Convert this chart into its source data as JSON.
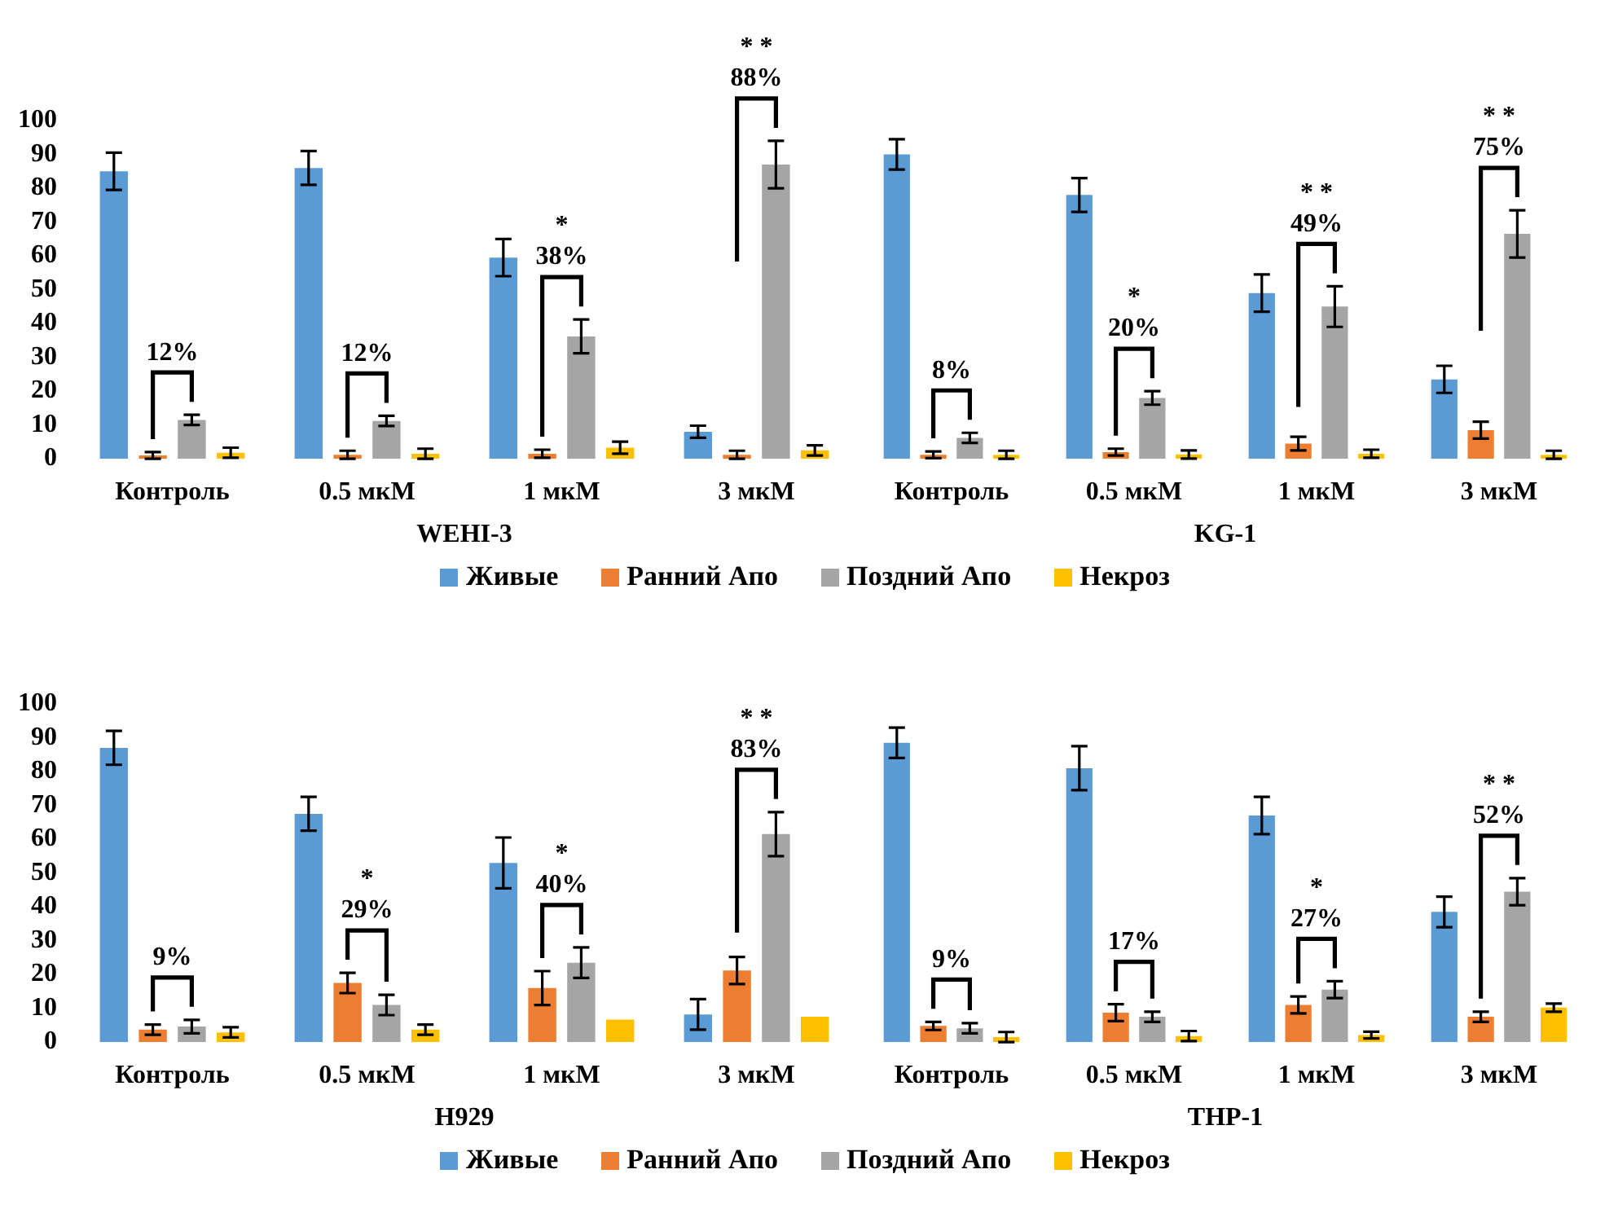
{
  "chart_data": [
    {
      "type": "bar",
      "categories": [
        "Контроль",
        "0.5 мкМ",
        "1 мкМ",
        "3 мкМ"
      ],
      "xlabel": "WEHI-3",
      "ylim": [
        0,
        100
      ],
      "yticks": [
        0,
        10,
        20,
        30,
        40,
        50,
        60,
        70,
        80,
        90,
        100
      ],
      "grid": false,
      "legend": "bottom",
      "series": [
        {
          "name": "Живые",
          "color": "#5b9bd5",
          "values": [
            85,
            86,
            59.5,
            8
          ],
          "errors": [
            5.5,
            5,
            5.5,
            1.8
          ]
        },
        {
          "name": "Ранний Апо",
          "color": "#ed7d31",
          "values": [
            1,
            1.2,
            1.5,
            1.2
          ],
          "errors": [
            1,
            1.2,
            1.2,
            1.2
          ]
        },
        {
          "name": "Поздний Апо",
          "color": "#a5a5a5",
          "values": [
            11.5,
            11.2,
            36.2,
            87
          ],
          "errors": [
            1.5,
            1.5,
            5,
            7
          ]
        },
        {
          "name": "Некроз",
          "color": "#ffc000",
          "values": [
            1.8,
            1.5,
            3.3,
            2.5
          ],
          "errors": [
            1.5,
            1.5,
            1.8,
            1.5
          ]
        }
      ],
      "annotations": [
        "12%",
        "12%",
        "*\n38%",
        "* *\n88%"
      ]
    },
    {
      "type": "bar",
      "categories": [
        "Контроль",
        "0.5 мкМ",
        "1 мкМ",
        "3 мкМ"
      ],
      "xlabel": "KG-1",
      "ylim": [
        0,
        100
      ],
      "grid": false,
      "tick_labels": "x",
      "series": [
        {
          "color": "#5b9bd5",
          "values": [
            90,
            78,
            49,
            23.5
          ],
          "errors": [
            4.5,
            5,
            5.5,
            4
          ]
        },
        {
          "color": "#ed7d31",
          "values": [
            1.2,
            2,
            4.5,
            8.5
          ],
          "errors": [
            1,
            1,
            2,
            2.5
          ]
        },
        {
          "color": "#a5a5a5",
          "values": [
            6.2,
            18,
            45,
            66.5
          ],
          "errors": [
            1.5,
            2,
            6,
            7
          ]
        },
        {
          "color": "#ffc000",
          "values": [
            1.2,
            1.3,
            1.5,
            1.2
          ],
          "errors": [
            1.2,
            1.2,
            1.2,
            1.2
          ]
        }
      ],
      "annotations": [
        "8%",
        "*\n20%",
        "* *\n49%",
        "* *\n75%"
      ]
    },
    {
      "type": "bar",
      "categories": [
        "Контроль",
        "0.5 мкМ",
        "1 мкМ",
        "3 мкМ"
      ],
      "xlabel": "H929",
      "ylim": [
        0,
        100
      ],
      "yticks": [
        0,
        10,
        20,
        30,
        40,
        50,
        60,
        70,
        80,
        90,
        100
      ],
      "grid": false,
      "legend": "bottom",
      "series": [
        {
          "name": "Живые",
          "color": "#5b9bd5",
          "values": [
            87,
            67.5,
            53,
            8.2
          ],
          "errors": [
            5,
            5,
            7.5,
            4.5
          ]
        },
        {
          "name": "Ранний Апо",
          "color": "#ed7d31",
          "values": [
            3.7,
            17.5,
            16,
            21.2
          ],
          "errors": [
            1.5,
            3,
            5,
            4
          ]
        },
        {
          "name": "Поздний Апо",
          "color": "#a5a5a5",
          "values": [
            4.6,
            11,
            23.5,
            61.5
          ],
          "errors": [
            2,
            3,
            4.5,
            6.5
          ]
        },
        {
          "name": "Некроз",
          "color": "#ffc000",
          "values": [
            2.9,
            3.7,
            6.7,
            7.5
          ],
          "errors": [
            1.5,
            1.5,
            null,
            null
          ]
        }
      ],
      "annotations": [
        "9%",
        "*\n29%",
        "*\n40%",
        "* *\n83%"
      ]
    },
    {
      "type": "bar",
      "categories": [
        "Контроль",
        "0.5 мкМ",
        "1 мкМ",
        "3 мкМ"
      ],
      "xlabel": "THP-1",
      "ylim": [
        0,
        100
      ],
      "grid": false,
      "tick_labels": "x",
      "series": [
        {
          "color": "#5b9bd5",
          "values": [
            88.5,
            81,
            67,
            38.5
          ],
          "errors": [
            4.5,
            6.5,
            5.5,
            4.5
          ]
        },
        {
          "color": "#ed7d31",
          "values": [
            4.8,
            8.7,
            11,
            7.5
          ],
          "errors": [
            1.2,
            2.5,
            2.5,
            1.5
          ]
        },
        {
          "color": "#a5a5a5",
          "values": [
            4.1,
            7.5,
            15.5,
            44.5
          ],
          "errors": [
            1.5,
            1.5,
            2.5,
            4
          ]
        },
        {
          "color": "#ffc000",
          "values": [
            1.5,
            1.8,
            2.1,
            10.2
          ],
          "errors": [
            1.5,
            1.5,
            1,
            1.2
          ]
        }
      ],
      "annotations": [
        "9%",
        "17%",
        "*\n27%",
        "* *\n52%"
      ]
    }
  ]
}
